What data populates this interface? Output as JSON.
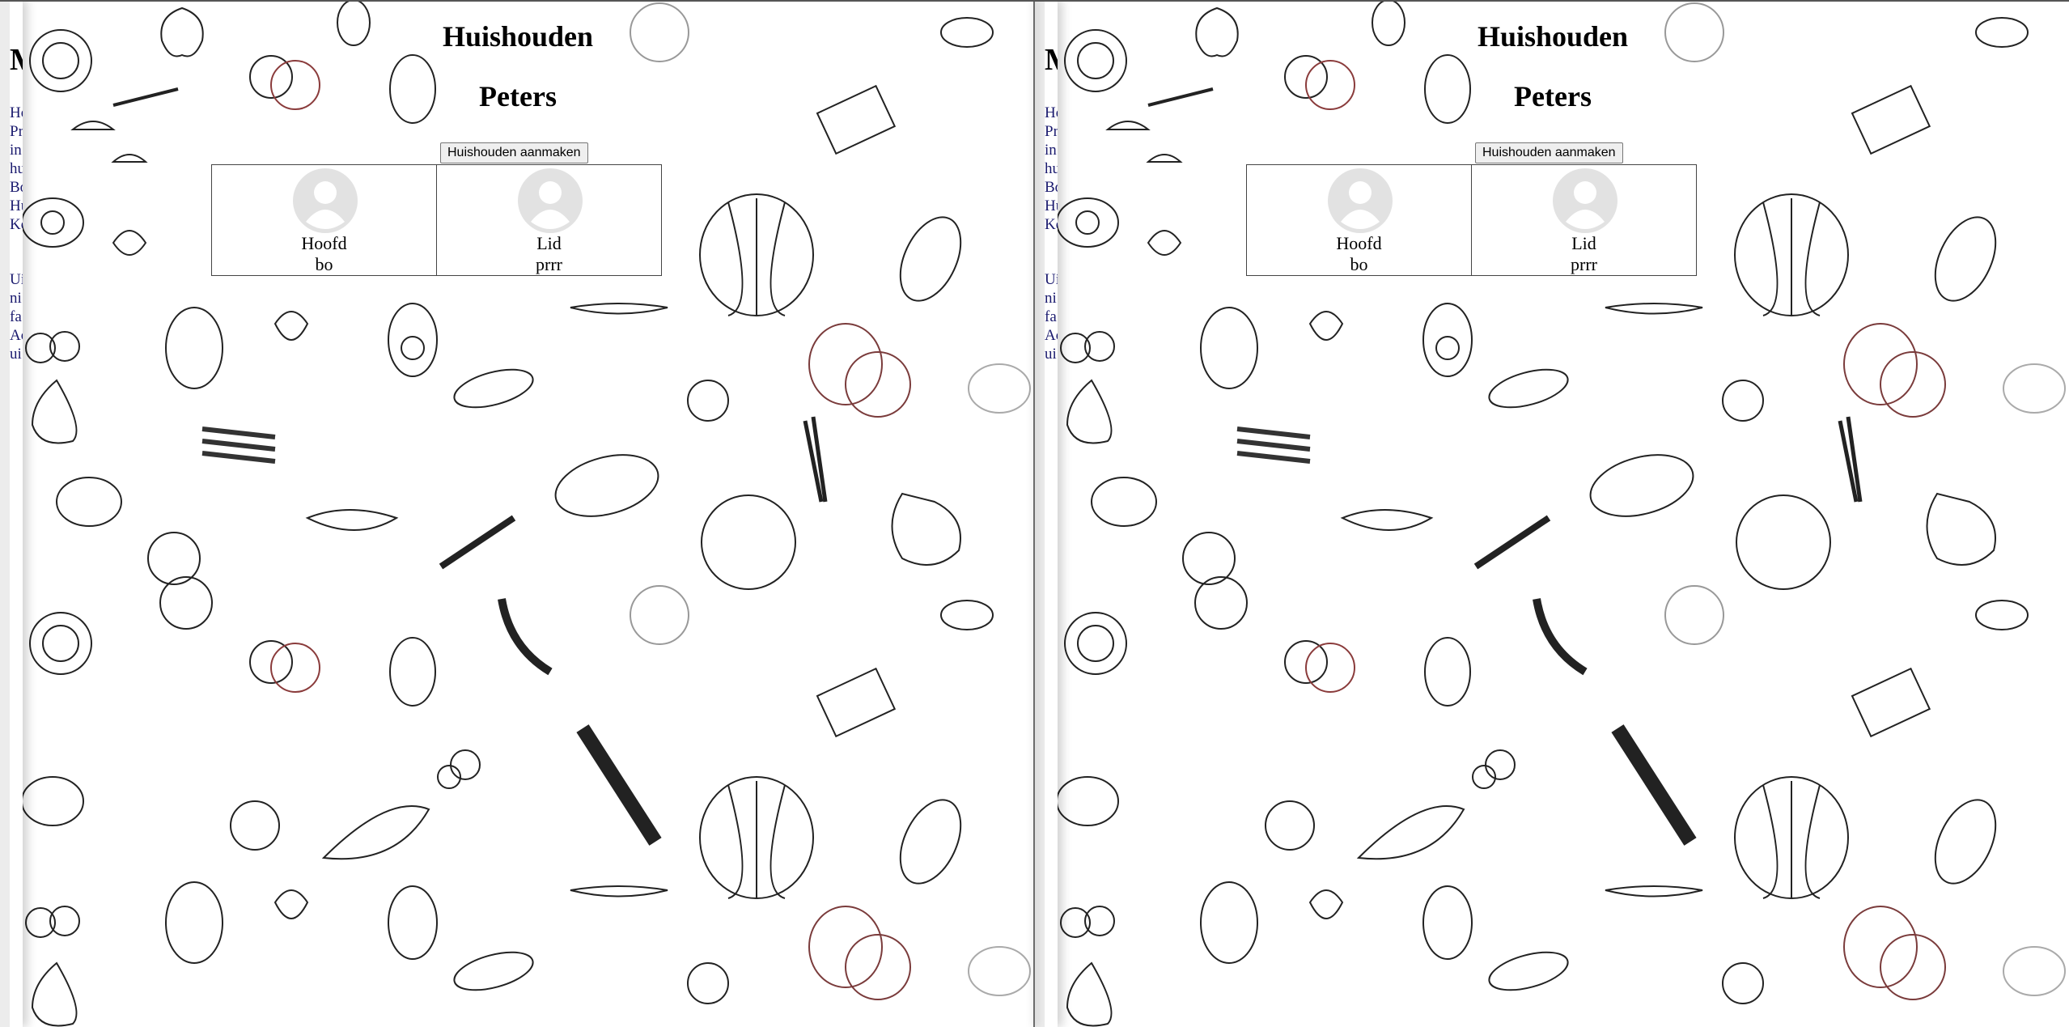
{
  "drawer": {
    "title_fragment": "M",
    "links": [
      "Ho",
      "Pr",
      "in",
      "hu",
      "Bo",
      "Hu",
      "Ko"
    ],
    "links2": [
      "Ui",
      "ni",
      "fa",
      "Ac",
      "ui"
    ]
  },
  "household": {
    "heading": "Huishouden",
    "name": "Peters",
    "create_label": "Huishouden aanmaken",
    "members": [
      {
        "role": "Hoofd",
        "name": "bo"
      },
      {
        "role": "Lid",
        "name": "prrr"
      }
    ]
  },
  "icons": {
    "avatar": "user-avatar-icon",
    "background": "vegetable-sketch-pattern"
  }
}
